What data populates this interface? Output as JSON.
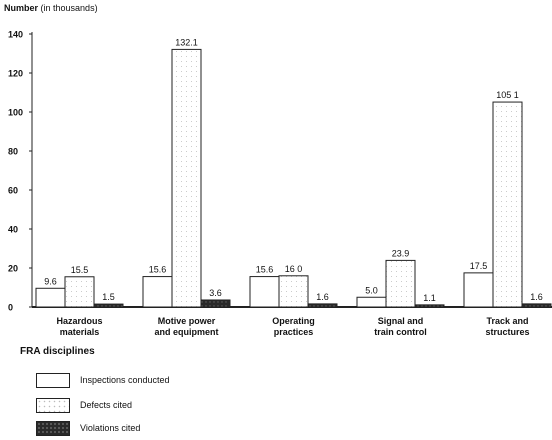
{
  "chart_data": {
    "type": "bar",
    "ylabel": "Number",
    "ylabel_unit": "(in thousands)",
    "ylim": [
      0,
      140
    ],
    "yticks": [
      0,
      20,
      40,
      60,
      80,
      100,
      120,
      140
    ],
    "categories": [
      [
        "Hazardous",
        "materials"
      ],
      [
        "Motive power",
        "and equipment"
      ],
      [
        "Operating",
        "practices"
      ],
      [
        "Signal and",
        "train control"
      ],
      [
        "Track and",
        "structures"
      ]
    ],
    "series": [
      {
        "name": "Inspections conducted",
        "values": [
          9.6,
          15.6,
          15.6,
          5.0,
          17.5
        ],
        "labels": [
          "9.6",
          "15.6",
          "15.6",
          "5.0",
          "17.5"
        ]
      },
      {
        "name": "Defects cited",
        "values": [
          15.5,
          132.1,
          16.0,
          23.9,
          105.1
        ],
        "labels": [
          "15.5",
          "132.1",
          "16 0",
          "23.9",
          "105 1"
        ]
      },
      {
        "name": "Violations cited",
        "values": [
          1.5,
          3.6,
          1.6,
          1.1,
          1.6
        ],
        "labels": [
          "1.5",
          "3.6",
          "1.6",
          "1.1",
          "1.6"
        ]
      }
    ],
    "xlabel": "FRA disciplines",
    "grid": false,
    "legend_position": "bottom-left"
  }
}
